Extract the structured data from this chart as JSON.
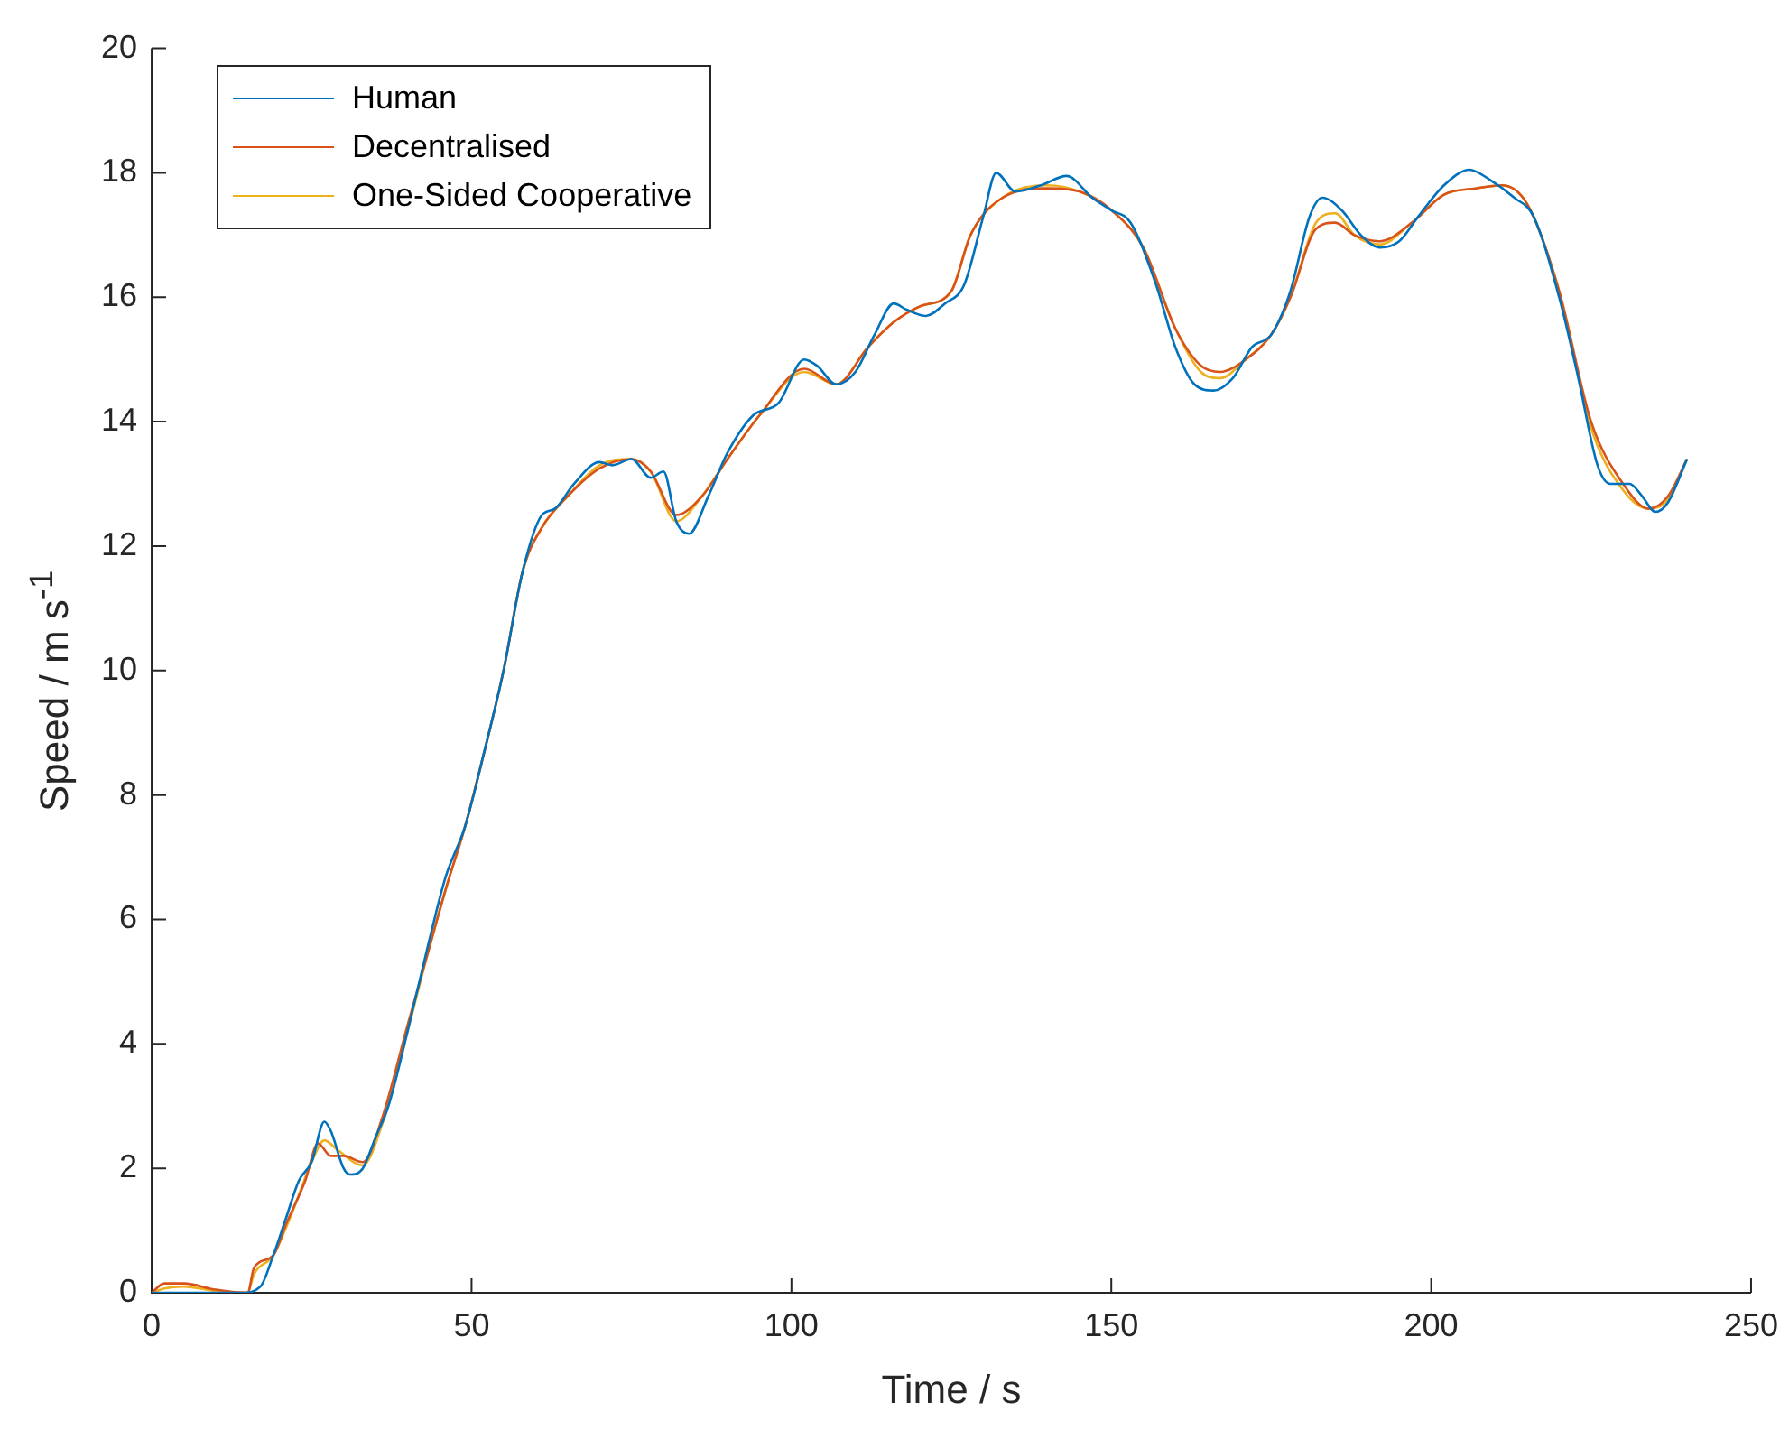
{
  "chart_data": {
    "type": "line",
    "xlabel": "Time / s",
    "ylabel": "Speed / m s$^{-1}$",
    "xlim": [
      0,
      250
    ],
    "xticks": [
      0,
      50,
      100,
      150,
      200,
      250
    ],
    "ylim": [
      0,
      20
    ],
    "yticks": [
      0,
      2,
      4,
      6,
      8,
      10,
      12,
      14,
      16,
      18,
      20
    ],
    "grid": false,
    "legend": "top left",
    "marker": "none",
    "line_style": "solid",
    "series": [
      {
        "name": "Human",
        "color": "#0072bd",
        "x": [
          0,
          5,
          10,
          14,
          17,
          19,
          21,
          23,
          25,
          27,
          28,
          30,
          31,
          33,
          35,
          37,
          40,
          43,
          46,
          49,
          52,
          55,
          58,
          61,
          63,
          66,
          70,
          72,
          75,
          78,
          80,
          82,
          84,
          87,
          90,
          94,
          98,
          102,
          104,
          107,
          110,
          113,
          116,
          118,
          121,
          124,
          127,
          130,
          132,
          135,
          139,
          143,
          147,
          150,
          153,
          157,
          160,
          163,
          166,
          169,
          172,
          175,
          178,
          181,
          183,
          186,
          189,
          192,
          195,
          198,
          202,
          206,
          209,
          213,
          216,
          220,
          223,
          226,
          228,
          231,
          233,
          235,
          237,
          240
        ],
        "values": [
          0,
          0,
          0,
          0,
          0.1,
          0.6,
          1.2,
          1.8,
          2.1,
          2.75,
          2.6,
          2.0,
          1.9,
          2.0,
          2.5,
          3.0,
          4.2,
          5.5,
          6.7,
          7.5,
          8.7,
          10.0,
          11.6,
          12.5,
          12.6,
          13.0,
          13.35,
          13.3,
          13.4,
          13.1,
          13.2,
          12.4,
          12.2,
          12.8,
          13.5,
          14.1,
          14.3,
          15.0,
          14.9,
          14.6,
          14.8,
          15.4,
          15.9,
          15.8,
          15.7,
          15.9,
          16.2,
          17.3,
          18.0,
          17.7,
          17.8,
          17.95,
          17.6,
          17.4,
          17.2,
          16.2,
          15.2,
          14.6,
          14.5,
          14.7,
          15.2,
          15.4,
          16.1,
          17.3,
          17.6,
          17.4,
          17.0,
          16.8,
          16.9,
          17.3,
          17.8,
          18.05,
          17.9,
          17.6,
          17.3,
          16.0,
          14.7,
          13.3,
          13.0,
          13.0,
          12.8,
          12.55,
          12.7,
          13.4
        ]
      },
      {
        "name": "Decentralised",
        "color": "#d95319",
        "x": [
          0,
          2,
          5,
          10,
          15,
          16,
          19,
          21,
          24,
          26,
          28,
          30,
          33,
          36,
          40,
          43,
          46,
          49,
          52,
          55,
          58,
          61,
          65,
          70,
          75,
          78,
          82,
          86,
          90,
          95,
          102,
          107,
          112,
          116,
          120,
          125,
          128,
          133,
          140,
          145,
          150,
          155,
          160,
          164,
          167,
          171,
          175,
          178,
          182,
          185,
          188,
          192,
          197,
          202,
          207,
          211,
          215,
          220,
          225,
          230,
          234,
          237,
          240
        ],
        "values": [
          0,
          0.15,
          0.15,
          0.05,
          0,
          0.4,
          0.6,
          1.1,
          1.8,
          2.4,
          2.2,
          2.2,
          2.1,
          2.8,
          4.3,
          5.4,
          6.5,
          7.5,
          8.7,
          10.0,
          11.6,
          12.3,
          12.8,
          13.25,
          13.4,
          13.2,
          12.5,
          12.8,
          13.4,
          14.1,
          14.85,
          14.6,
          15.2,
          15.6,
          15.85,
          16.1,
          17.0,
          17.6,
          17.75,
          17.7,
          17.4,
          16.8,
          15.5,
          14.9,
          14.8,
          15.0,
          15.4,
          16.0,
          17.1,
          17.2,
          17.0,
          16.9,
          17.2,
          17.65,
          17.75,
          17.8,
          17.5,
          16.1,
          14.0,
          13.0,
          12.6,
          12.8,
          13.4
        ]
      },
      {
        "name": "One-Sided Cooperative",
        "color": "#edb120",
        "x": [
          0,
          2,
          5,
          10,
          15,
          16,
          19,
          22,
          25,
          27,
          29,
          33,
          36,
          40,
          43,
          46,
          49,
          52,
          55,
          58,
          61,
          65,
          70,
          75,
          78,
          82,
          86,
          90,
          95,
          102,
          107,
          112,
          116,
          120,
          125,
          128,
          133,
          140,
          145,
          150,
          155,
          160,
          164,
          167,
          171,
          175,
          178,
          182,
          185,
          188,
          192,
          197,
          202,
          207,
          211,
          215,
          220,
          225,
          230,
          234,
          237,
          240
        ],
        "values": [
          0,
          0.07,
          0.1,
          0.03,
          0,
          0.3,
          0.6,
          1.3,
          2.1,
          2.45,
          2.3,
          2.05,
          2.7,
          4.2,
          5.4,
          6.5,
          7.5,
          8.7,
          10.0,
          11.6,
          12.3,
          12.8,
          13.3,
          13.4,
          13.2,
          12.4,
          12.8,
          13.4,
          14.1,
          14.8,
          14.6,
          15.2,
          15.6,
          15.85,
          16.1,
          17.0,
          17.6,
          17.8,
          17.7,
          17.4,
          16.8,
          15.5,
          14.8,
          14.7,
          15.0,
          15.4,
          16.0,
          17.2,
          17.35,
          17.0,
          16.85,
          17.2,
          17.65,
          17.75,
          17.8,
          17.5,
          16.1,
          13.9,
          12.9,
          12.6,
          12.75,
          13.4
        ]
      }
    ]
  }
}
